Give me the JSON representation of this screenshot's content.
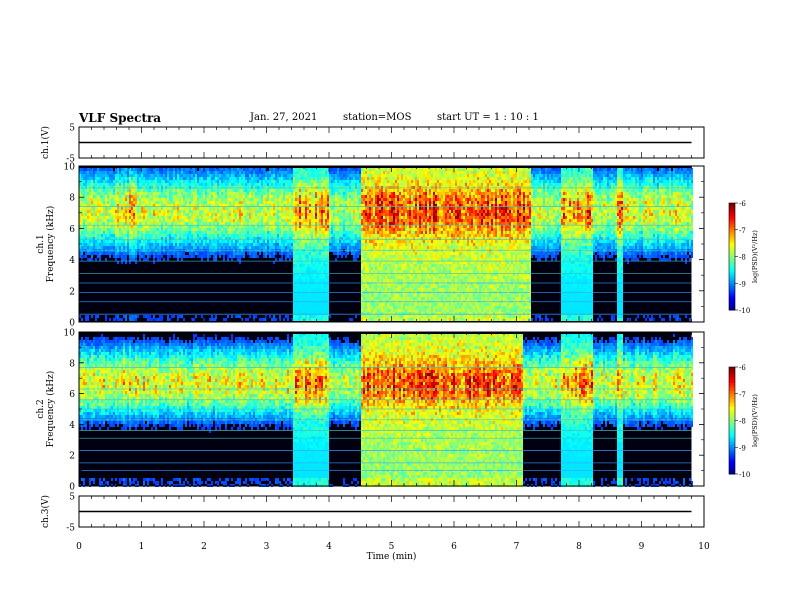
{
  "header": {
    "title": "VLF Spectra",
    "date": "Jan. 27, 2021",
    "station": "station=MOS",
    "start": "start  UT  =   1 : 10 : 1"
  },
  "chart_data": [
    {
      "type": "line",
      "panel": "ch1-waveform",
      "ylabel": "ch.1(V)",
      "ylim": [
        -5,
        5
      ],
      "y_ticks": [
        "5",
        "-5"
      ],
      "xlim": [
        0,
        10
      ],
      "series": [
        {
          "x": [
            0,
            9.8
          ],
          "y": [
            0,
            0
          ]
        }
      ]
    },
    {
      "type": "heatmap",
      "panel": "ch1-spectrogram",
      "ylabel": "ch.1\nFrequency (kHz)",
      "ylim": [
        0,
        10
      ],
      "y_ticks": [
        "0",
        "2",
        "4",
        "6",
        "8",
        "10"
      ],
      "xlim": [
        0,
        10
      ],
      "colorbar": {
        "label": "log(PSD)(V²/Hz)",
        "ticks": [
          "-6",
          "-7",
          "-8",
          "-9",
          "-10"
        ],
        "range": [
          -10,
          -6
        ]
      },
      "activity_profile": [
        {
          "t0": 0.0,
          "t1": 0.6,
          "level": 0.55
        },
        {
          "t0": 0.6,
          "t1": 0.9,
          "level": 0.75
        },
        {
          "t0": 0.9,
          "t1": 3.4,
          "level": 0.55
        },
        {
          "t0": 3.4,
          "t1": 4.0,
          "level": 0.85
        },
        {
          "t0": 4.0,
          "t1": 4.5,
          "level": 0.45
        },
        {
          "t0": 4.5,
          "t1": 7.2,
          "level": 1.0
        },
        {
          "t0": 7.2,
          "t1": 7.7,
          "level": 0.5
        },
        {
          "t0": 7.7,
          "t1": 8.2,
          "level": 0.85
        },
        {
          "t0": 8.2,
          "t1": 8.6,
          "level": 0.5
        },
        {
          "t0": 8.6,
          "t1": 8.7,
          "level": 0.85
        },
        {
          "t0": 8.7,
          "t1": 9.8,
          "level": 0.55
        }
      ]
    },
    {
      "type": "heatmap",
      "panel": "ch2-spectrogram",
      "ylabel": "ch.2\nFrequency (kHz)",
      "ylim": [
        0,
        10
      ],
      "y_ticks": [
        "0",
        "2",
        "4",
        "6",
        "8",
        "10"
      ],
      "xlim": [
        0,
        10
      ],
      "colorbar": {
        "label": "log(PSD)(V²/Hz)",
        "ticks": [
          "-6",
          "-7",
          "-8",
          "-9",
          "-10"
        ],
        "range": [
          -10,
          -6
        ]
      },
      "activity_profile": [
        {
          "t0": 0.0,
          "t1": 0.6,
          "level": 0.6
        },
        {
          "t0": 0.6,
          "t1": 0.9,
          "level": 0.75
        },
        {
          "t0": 0.9,
          "t1": 3.4,
          "level": 0.6
        },
        {
          "t0": 3.4,
          "t1": 4.0,
          "level": 0.85
        },
        {
          "t0": 4.0,
          "t1": 4.5,
          "level": 0.5
        },
        {
          "t0": 4.5,
          "t1": 7.1,
          "level": 1.0
        },
        {
          "t0": 7.1,
          "t1": 7.7,
          "level": 0.55
        },
        {
          "t0": 7.7,
          "t1": 8.2,
          "level": 0.85
        },
        {
          "t0": 8.2,
          "t1": 8.6,
          "level": 0.55
        },
        {
          "t0": 8.6,
          "t1": 8.7,
          "level": 0.85
        },
        {
          "t0": 8.7,
          "t1": 9.8,
          "level": 0.6
        }
      ]
    },
    {
      "type": "line",
      "panel": "ch3-waveform",
      "ylabel": "ch.3(V)",
      "ylim": [
        -5,
        5
      ],
      "y_ticks": [
        "5",
        "-5"
      ],
      "xlim": [
        0,
        10
      ],
      "series": [
        {
          "x": [
            0,
            9.8
          ],
          "y": [
            0,
            0
          ]
        }
      ]
    }
  ],
  "x_axis": {
    "label": "Time (min)",
    "ticks": [
      "0",
      "1",
      "2",
      "3",
      "4",
      "5",
      "6",
      "7",
      "8",
      "9",
      "10"
    ]
  }
}
